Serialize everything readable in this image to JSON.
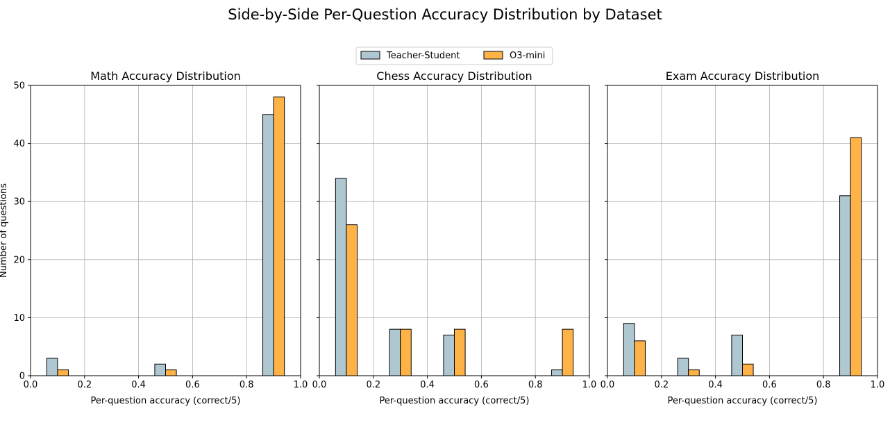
{
  "chart_data": {
    "type": "bar",
    "title": "Side-by-Side Per-Question Accuracy Distribution by Dataset",
    "legend": {
      "placement": "top-center",
      "entries": [
        "Teacher-Student",
        "O3-mini"
      ]
    },
    "series_colors": {
      "Teacher-Student": "#aec7d1",
      "O3-mini": "#ffb347"
    },
    "xlabel": "Per-question accuracy (correct/5)",
    "ylabel": "Number of questions",
    "xlim": [
      0,
      1
    ],
    "ylim": [
      0,
      50
    ],
    "xticks": [
      "0.0",
      "0.2",
      "0.4",
      "0.6",
      "0.8",
      "1.0"
    ],
    "yticks": [
      "0",
      "10",
      "20",
      "30",
      "40",
      "50"
    ],
    "grid": true,
    "bins": [
      0.1,
      0.3,
      0.5,
      0.7,
      0.9
    ],
    "panels": [
      {
        "title": "Math Accuracy Distribution",
        "series": [
          {
            "name": "Teacher-Student",
            "values": [
              3,
              0,
              2,
              0,
              45
            ]
          },
          {
            "name": "O3-mini",
            "values": [
              1,
              0,
              1,
              0,
              48
            ]
          }
        ]
      },
      {
        "title": "Chess Accuracy Distribution",
        "series": [
          {
            "name": "Teacher-Student",
            "values": [
              34,
              8,
              7,
              0,
              1
            ]
          },
          {
            "name": "O3-mini",
            "values": [
              26,
              8,
              8,
              0,
              8
            ]
          }
        ]
      },
      {
        "title": "Exam Accuracy Distribution",
        "series": [
          {
            "name": "Teacher-Student",
            "values": [
              9,
              3,
              7,
              0,
              31
            ]
          },
          {
            "name": "O3-mini",
            "values": [
              6,
              1,
              2,
              0,
              41
            ]
          }
        ]
      }
    ]
  }
}
